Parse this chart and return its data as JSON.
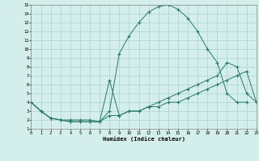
{
  "background_color": "#d4eeec",
  "grid_color": "#a8d4d0",
  "line_color": "#2a7a6a",
  "xlabel": "Humidex (Indice chaleur)",
  "xlim": [
    0,
    23
  ],
  "ylim": [
    1,
    15
  ],
  "xtick_vals": [
    0,
    1,
    2,
    3,
    4,
    5,
    6,
    7,
    8,
    9,
    10,
    11,
    12,
    13,
    14,
    15,
    16,
    17,
    18,
    19,
    20,
    21,
    22,
    23
  ],
  "ytick_vals": [
    1,
    2,
    3,
    4,
    5,
    6,
    7,
    8,
    9,
    10,
    11,
    12,
    13,
    14,
    15
  ],
  "line1_x": [
    0,
    1,
    2,
    3,
    4,
    5,
    6,
    7,
    8,
    9,
    10,
    11,
    12,
    13,
    14,
    15,
    16,
    17,
    18,
    19,
    20,
    21,
    22
  ],
  "line1_y": [
    4,
    3,
    2.2,
    2,
    2,
    2,
    2,
    1.8,
    3,
    9.5,
    11.5,
    13,
    14.2,
    14.8,
    15.0,
    14.5,
    13.5,
    12,
    10,
    8.5,
    5,
    4,
    4
  ],
  "line2_x": [
    0,
    1,
    2,
    3,
    4,
    5,
    6,
    7,
    8,
    9,
    10,
    11,
    12,
    13,
    14,
    15,
    16,
    17,
    18,
    19,
    20,
    21,
    22,
    23
  ],
  "line2_y": [
    4,
    3,
    2.2,
    2,
    1.8,
    1.8,
    1.8,
    1.8,
    6.5,
    2.5,
    3,
    3,
    3.5,
    4,
    4.5,
    5,
    5.5,
    6,
    6.5,
    7,
    8.5,
    8,
    5,
    4
  ],
  "line3_x": [
    0,
    1,
    2,
    3,
    4,
    5,
    6,
    7,
    8,
    9,
    10,
    11,
    12,
    13,
    14,
    15,
    16,
    17,
    18,
    19,
    20,
    21,
    22,
    23
  ],
  "line3_y": [
    4,
    3,
    2.2,
    2,
    1.8,
    1.8,
    1.8,
    1.8,
    2.5,
    2.5,
    3,
    3,
    3.5,
    3.5,
    4,
    4,
    4.5,
    5,
    5.5,
    6,
    6.5,
    7,
    7.5,
    4
  ]
}
